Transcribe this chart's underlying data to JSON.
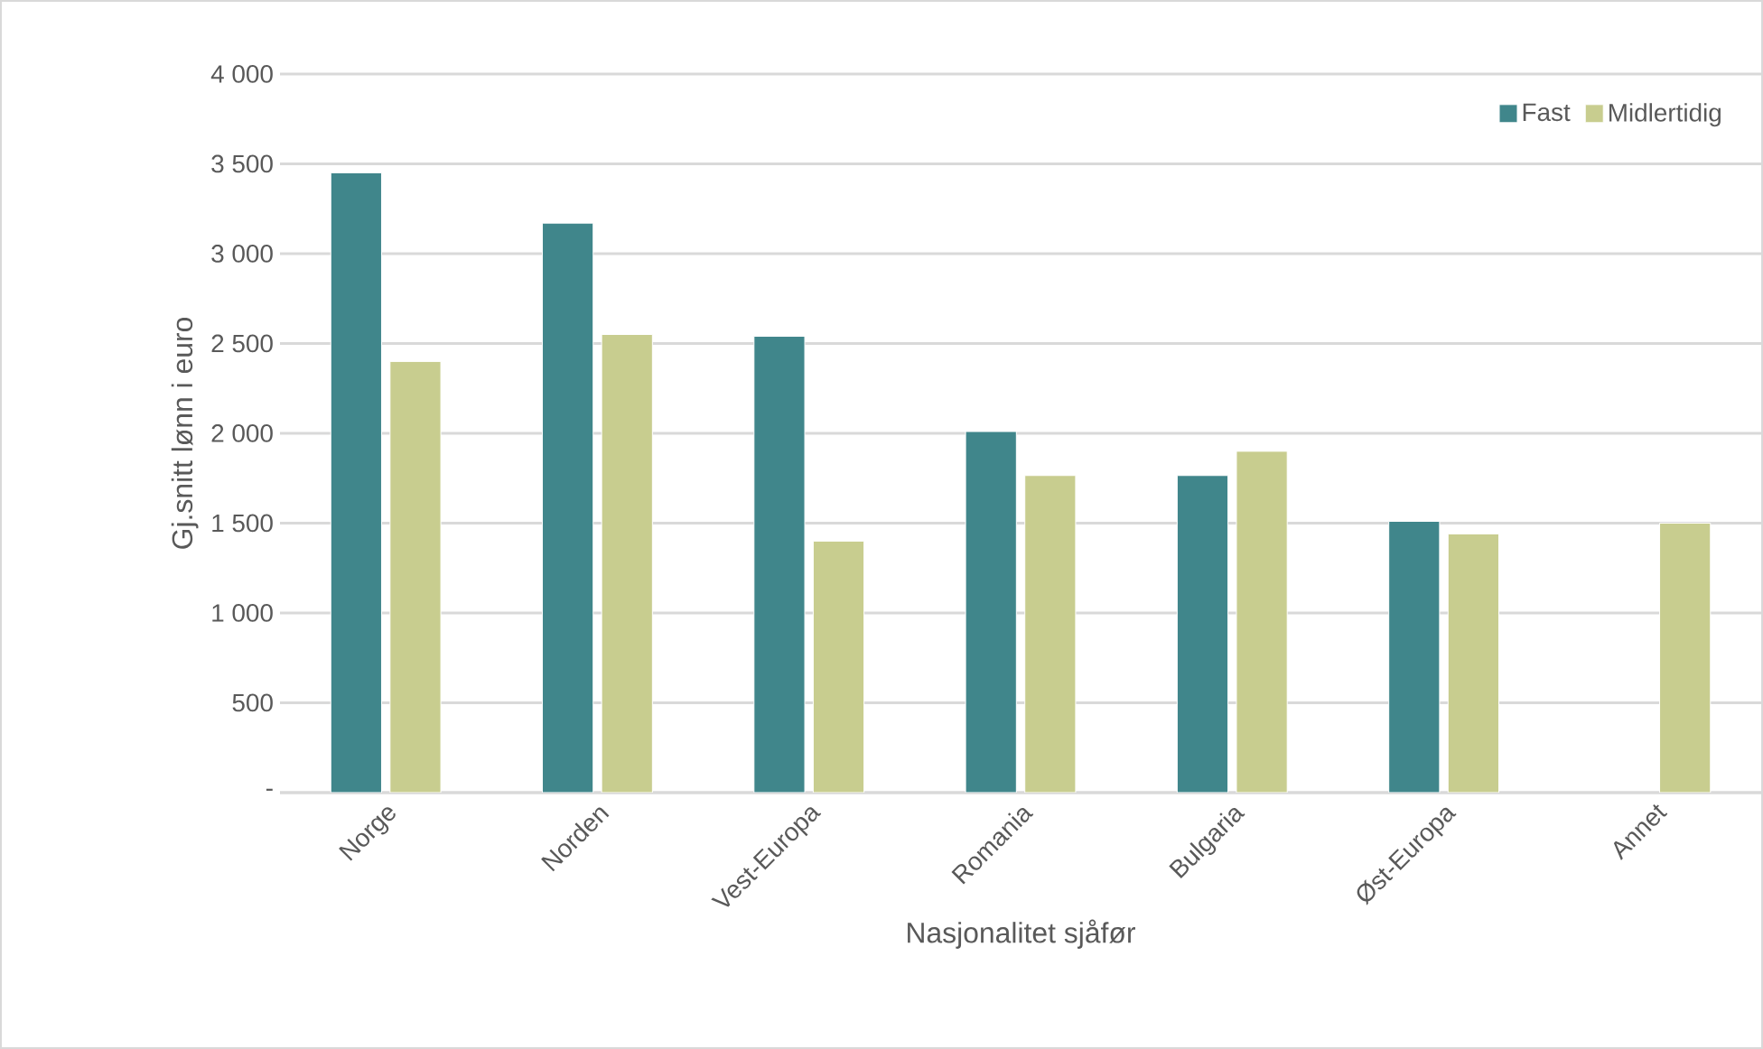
{
  "chart_data": {
    "type": "bar",
    "xlabel": "Nasjonalitet sjåfør",
    "ylabel": "Gj.snitt lønn i euro",
    "categories": [
      "Norge",
      "Norden",
      "Vest-Europa",
      "Romania",
      "Bulgaria",
      "Øst-Europa",
      "Annet"
    ],
    "series": [
      {
        "name": "Fast",
        "color": "#40868b",
        "values": [
          3450,
          3170,
          2540,
          2010,
          1765,
          1510,
          null
        ]
      },
      {
        "name": "Midlertidig",
        "color": "#c8cd8f",
        "values": [
          2400,
          2550,
          1400,
          1765,
          1900,
          1440,
          1500
        ]
      }
    ],
    "ylim": [
      0,
      4000
    ],
    "yticks": [
      {
        "value": 0,
        "label": "-"
      },
      {
        "value": 500,
        "label": "500"
      },
      {
        "value": 1000,
        "label": "1 000"
      },
      {
        "value": 1500,
        "label": "1 500"
      },
      {
        "value": 2000,
        "label": "2 000"
      },
      {
        "value": 2500,
        "label": "2 500"
      },
      {
        "value": 3000,
        "label": "3 000"
      },
      {
        "value": 3500,
        "label": "3 500"
      },
      {
        "value": 4000,
        "label": "4 000"
      }
    ],
    "grid": "y",
    "legend": "top right"
  }
}
